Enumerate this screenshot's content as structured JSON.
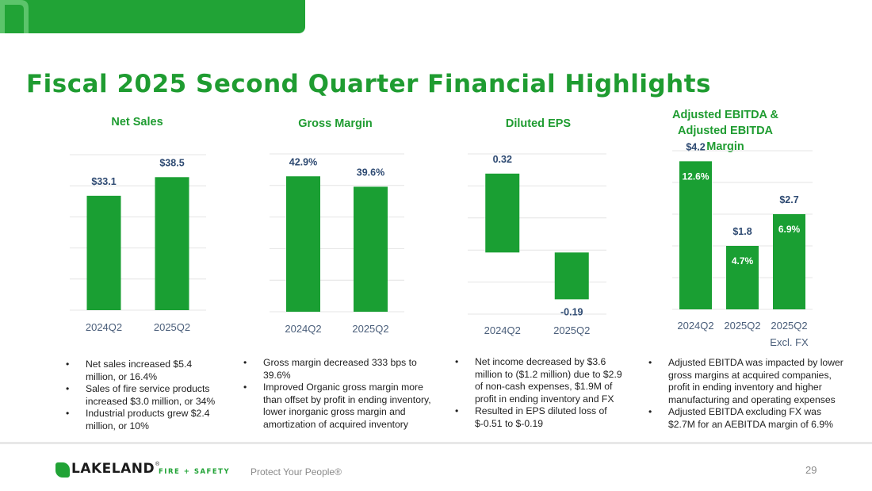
{
  "title": "Fiscal 2025 Second Quarter Financial Highlights",
  "colors": {
    "bar": "#1a9f33",
    "title": "#1f9c31",
    "data_label": "#2e4a72",
    "tick_label": "#4a5e7a"
  },
  "chart_data": [
    {
      "type": "bar",
      "title": "Net Sales",
      "categories": [
        "2024Q2",
        "2025Q2"
      ],
      "values": [
        33.1,
        38.5
      ],
      "labels": [
        "$33.1",
        "$38.5"
      ],
      "ylim": [
        0,
        45
      ],
      "grid": true
    },
    {
      "type": "bar",
      "title": "Gross Margin",
      "categories": [
        "2024Q2",
        "2025Q2"
      ],
      "values": [
        42.9,
        39.6
      ],
      "labels": [
        "42.9%",
        "39.6%"
      ],
      "ylim": [
        0,
        50
      ],
      "grid": true
    },
    {
      "type": "bar",
      "title": "Diluted EPS",
      "categories": [
        "2024Q2",
        "2025Q2"
      ],
      "values": [
        0.32,
        -0.19
      ],
      "labels": [
        "0.32",
        "-0.19"
      ],
      "ylim": [
        -0.25,
        0.4
      ],
      "grid": true
    },
    {
      "type": "bar",
      "title": "Adjusted EBITDA & Adjusted EBITDA Margin",
      "categories": [
        "2024Q2",
        "2025Q2",
        "2025Q2 Excl. FX"
      ],
      "values": [
        4.2,
        1.8,
        2.7
      ],
      "labels": [
        "$4.2",
        "$1.8",
        "$2.7"
      ],
      "margins": [
        "12.6%",
        "4.7%",
        "6.9%"
      ],
      "ylim": [
        0,
        4.5
      ],
      "grid": true
    }
  ],
  "bullets": [
    [
      "Net sales increased $5.4 million, or 16.4%",
      "Sales of fire service products increased $3.0 million, or 34%",
      "Industrial products grew $2.4 million, or 10%"
    ],
    [
      "Gross margin decreased 333 bps to 39.6%",
      "Improved Organic gross margin more than offset by profit in ending inventory, lower inorganic gross margin and amortization of acquired inventory"
    ],
    [
      "Net income decreased by $3.6 million to ($1.2 million) due to $2.9 of non-cash expenses, $1.9M of profit in ending inventory and FX",
      "Resulted in EPS diluted loss  of  $-0.51 to $-0.19"
    ],
    [
      "Adjusted EBITDA was impacted by lower gross margins at acquired companies, profit in ending inventory and higher manufacturing and operating expenses",
      "Adjusted EBITDA excluding FX was $2.7M for an AEBITDA margin of 6.9%"
    ]
  ],
  "footer": {
    "logo_word": "LAKELAND",
    "logo_reg": "®",
    "logo_sub": "FIRE + SAFETY",
    "tagline": "Protect Your People®",
    "page_number": "29"
  }
}
